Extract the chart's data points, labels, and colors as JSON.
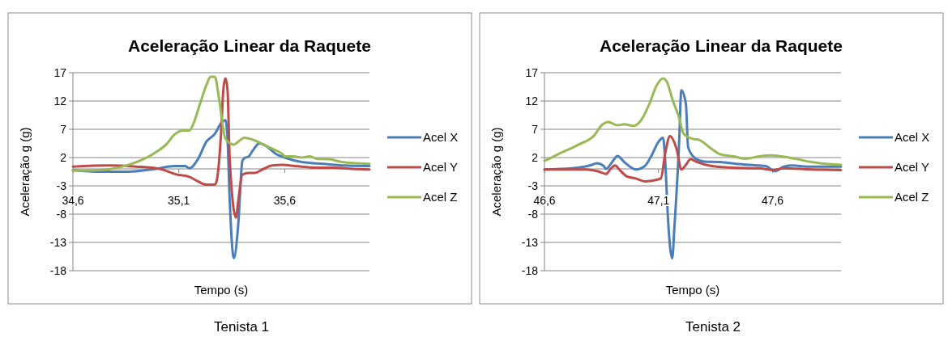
{
  "chart_data": [
    {
      "type": "line",
      "title": "Aceleração Linear da Raquete",
      "xlabel": "Tempo (s)",
      "ylabel": "Aceleração g (g)",
      "annotations": [
        "Tenista 1"
      ],
      "xlim": [
        34.6,
        36.0
      ],
      "xticks": [
        {
          "value": 34.6,
          "label": "34,6"
        },
        {
          "value": 35.1,
          "label": "35,1"
        },
        {
          "value": 35.6,
          "label": "35,6"
        }
      ],
      "ylim": [
        -18,
        17
      ],
      "yticks": [
        -18,
        -13,
        -8,
        -3,
        2,
        7,
        12,
        17
      ],
      "grid": "y",
      "legend": "right",
      "line_style": "solid",
      "series": [
        {
          "name": "Acel X",
          "color": "#4a7ebb",
          "x": [
            34.6,
            34.73,
            34.86,
            34.99,
            35.08,
            35.13,
            35.15,
            35.19,
            35.23,
            35.27,
            35.3,
            35.32,
            35.33,
            35.34,
            35.36,
            35.38,
            35.4,
            35.41,
            35.43,
            35.45,
            35.48,
            35.51,
            35.56,
            35.6,
            35.68,
            35.78,
            35.88,
            36.0
          ],
          "values": [
            -0.2,
            -0.5,
            -0.5,
            0,
            0.5,
            0.5,
            0.1,
            1.7,
            4.8,
            6.2,
            8.1,
            8.6,
            5.3,
            -5.3,
            -15.8,
            -10.1,
            1.4,
            1.9,
            2.2,
            3.3,
            4.5,
            4.1,
            2.6,
            2.0,
            1.2,
            0.9,
            0.6,
            0.5
          ]
        },
        {
          "name": "Acel Y",
          "color": "#be4b48",
          "x": [
            34.6,
            34.77,
            34.9,
            35.01,
            35.09,
            35.15,
            35.19,
            35.23,
            35.27,
            35.28,
            35.3,
            35.31,
            35.32,
            35.33,
            35.34,
            35.37,
            35.38,
            35.4,
            35.43,
            35.46,
            35.5,
            35.54,
            35.59,
            35.65,
            35.75,
            35.83,
            35.92,
            36.0
          ],
          "values": [
            0.4,
            0.6,
            0.4,
            0,
            -1.0,
            -1.4,
            -2.2,
            -2.8,
            -2.8,
            -1.9,
            6.7,
            13.9,
            16.0,
            13.9,
            1.9,
            -8.6,
            -5.8,
            -1.0,
            -0.7,
            -0.7,
            0,
            0.6,
            0.7,
            0.5,
            0.2,
            0.2,
            0,
            -0.1
          ]
        },
        {
          "name": "Acel Z",
          "color": "#98b954",
          "x": [
            34.6,
            34.73,
            34.81,
            34.9,
            34.99,
            35.04,
            35.08,
            35.12,
            35.15,
            35.17,
            35.2,
            35.23,
            35.25,
            35.27,
            35.29,
            35.32,
            35.36,
            35.37,
            35.41,
            35.46,
            35.51,
            35.55,
            35.59,
            35.6,
            35.64,
            35.68,
            35.72,
            35.75,
            35.81,
            35.87,
            35.94,
            36.0
          ],
          "values": [
            -0.3,
            -0.2,
            0.2,
            1.2,
            2.9,
            4.3,
            6.1,
            6.8,
            6.8,
            8.1,
            11.5,
            14.8,
            16.3,
            16.3,
            12.4,
            5.3,
            4.3,
            4.5,
            5.5,
            5.0,
            4.1,
            3.4,
            2.6,
            2.2,
            2.2,
            2.0,
            2.2,
            1.8,
            1.7,
            1.2,
            1.0,
            0.9
          ]
        }
      ]
    },
    {
      "type": "line",
      "title": "Aceleração Linear da Raquete",
      "xlabel": "Tempo (s)",
      "ylabel": "Aceleração g (g)",
      "annotations": [
        "Tenista 2"
      ],
      "xlim": [
        46.6,
        47.9
      ],
      "xticks": [
        {
          "value": 46.6,
          "label": "46,6"
        },
        {
          "value": 47.1,
          "label": "47,1"
        },
        {
          "value": 47.6,
          "label": "47,6"
        }
      ],
      "ylim": [
        -18,
        17
      ],
      "yticks": [
        -18,
        -13,
        -8,
        -3,
        2,
        7,
        12,
        17
      ],
      "grid": "y",
      "legend": "right",
      "line_style": "solid",
      "series": [
        {
          "name": "Acel X",
          "color": "#4a7ebb",
          "x": [
            46.6,
            46.72,
            46.8,
            46.83,
            46.86,
            46.87,
            46.9,
            46.92,
            46.95,
            47.0,
            47.04,
            47.07,
            47.1,
            47.12,
            47.13,
            47.14,
            47.16,
            47.17,
            47.19,
            47.2,
            47.22,
            47.23,
            47.26,
            47.3,
            47.37,
            47.44,
            47.54,
            47.57,
            47.61,
            47.65,
            47.69,
            47.75,
            47.9
          ],
          "values": [
            -0.1,
            0.1,
            0.6,
            1.0,
            0.5,
            0,
            1.4,
            2.3,
            1.2,
            -0.1,
            0.5,
            2.4,
            4.8,
            5.5,
            1.0,
            -7.7,
            -15.8,
            -10.1,
            4.3,
            13.9,
            11.5,
            3.8,
            1.9,
            1.3,
            1.2,
            0.9,
            0.6,
            0.5,
            -0.4,
            0.4,
            0.6,
            0.4,
            0.4
          ]
        },
        {
          "name": "Acel Y",
          "color": "#be4b48",
          "x": [
            46.6,
            46.78,
            46.84,
            46.87,
            46.89,
            46.91,
            46.93,
            46.96,
            47.0,
            47.04,
            47.07,
            47.11,
            47.13,
            47.15,
            47.18,
            47.2,
            47.22,
            47.24,
            47.27,
            47.32,
            47.42,
            47.54,
            47.6,
            47.65,
            47.77,
            47.9
          ],
          "values": [
            -0.1,
            -0.1,
            -0.5,
            -0.9,
            0,
            0.6,
            -0.2,
            -1.3,
            -1.7,
            -2.2,
            -2.1,
            -1.7,
            2.9,
            5.8,
            3.4,
            -0.1,
            0.7,
            1.7,
            1.2,
            0.6,
            0.2,
            0.1,
            -0.2,
            0.1,
            -0.1,
            -0.2
          ]
        },
        {
          "name": "Acel Z",
          "color": "#98b954",
          "x": [
            46.6,
            46.66,
            46.75,
            46.82,
            46.85,
            46.88,
            46.92,
            46.95,
            46.99,
            47.02,
            47.06,
            47.09,
            47.12,
            47.14,
            47.16,
            47.19,
            47.21,
            47.25,
            47.28,
            47.33,
            47.37,
            47.43,
            47.48,
            47.54,
            47.59,
            47.64,
            47.71,
            47.77,
            47.9
          ],
          "values": [
            1.4,
            2.6,
            4.3,
            6.0,
            7.7,
            8.3,
            7.7,
            7.9,
            7.6,
            8.4,
            11.5,
            14.6,
            16.0,
            15.1,
            12.4,
            9.1,
            6.2,
            5.3,
            5.1,
            3.6,
            2.6,
            2.2,
            1.8,
            2.2,
            2.4,
            2.2,
            1.7,
            1.2,
            0.7
          ]
        }
      ]
    }
  ]
}
